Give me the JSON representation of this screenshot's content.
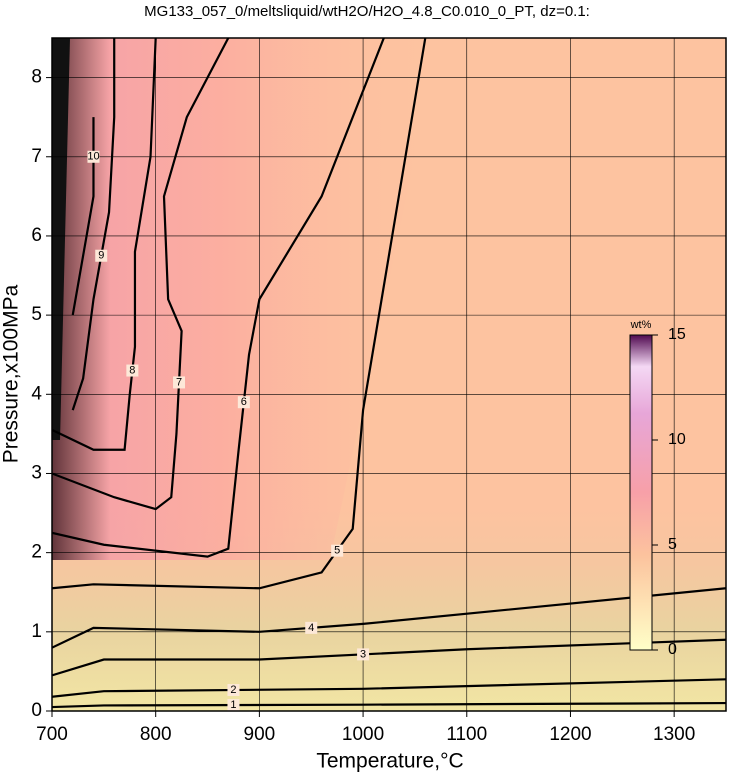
{
  "chart_data": {
    "type": "contour",
    "title": "MG133_057_0/meltsliquid/wtH2O/H2O_4.8_C0.010_0_PT, dz=0.1:",
    "x_label": "Temperature,°C",
    "y_label": "Pressure,x100MPa",
    "xlim": [
      700,
      1350
    ],
    "ylim": [
      0,
      8.5
    ],
    "xticks": [
      700,
      800,
      900,
      1000,
      1100,
      1200,
      1300
    ],
    "yticks": [
      0,
      1,
      2,
      3,
      4,
      5,
      6,
      7,
      8
    ],
    "grid": true,
    "colorbar": {
      "label": "wt%",
      "lim": [
        0,
        15
      ],
      "ticks": [
        0,
        5,
        10,
        15
      ]
    },
    "contours": [
      {
        "level": 1,
        "x": [
          700,
          750,
          1000,
          1350
        ],
        "y": [
          0.05,
          0.07,
          0.08,
          0.1
        ]
      },
      {
        "level": 2,
        "x": [
          700,
          750,
          1000,
          1350
        ],
        "y": [
          0.18,
          0.25,
          0.28,
          0.4
        ]
      },
      {
        "level": 3,
        "x": [
          700,
          750,
          900,
          1100,
          1350
        ],
        "y": [
          0.45,
          0.65,
          0.65,
          0.78,
          0.9
        ]
      },
      {
        "level": 4,
        "x": [
          700,
          740,
          900,
          1000,
          1350
        ],
        "y": [
          0.8,
          1.05,
          1.0,
          1.1,
          1.55
        ]
      },
      {
        "level": 5,
        "x": [
          700,
          740,
          900,
          960,
          990,
          1000,
          1060
        ],
        "y": [
          1.55,
          1.6,
          1.55,
          1.75,
          2.3,
          3.8,
          8.5
        ]
      },
      {
        "level": 6,
        "x": [
          700,
          750,
          850,
          870,
          880,
          890,
          900,
          960,
          1020
        ],
        "y": [
          2.25,
          2.1,
          1.95,
          2.05,
          3.3,
          4.5,
          5.2,
          6.5,
          8.5
        ]
      },
      {
        "level": 7,
        "x": [
          700,
          760,
          800,
          815,
          820,
          825,
          812,
          808,
          830,
          870
        ],
        "y": [
          3.0,
          2.7,
          2.55,
          2.7,
          3.5,
          4.8,
          5.2,
          6.5,
          7.5,
          8.5
        ]
      },
      {
        "level": 8,
        "x": [
          700,
          740,
          770,
          775,
          780,
          780,
          795,
          800
        ],
        "y": [
          3.55,
          3.3,
          3.3,
          4.0,
          4.6,
          5.8,
          7.0,
          8.5
        ]
      },
      {
        "level": 9,
        "x": [
          720,
          730,
          740,
          755,
          760,
          760
        ],
        "y": [
          3.8,
          4.2,
          5.2,
          6.3,
          7.5,
          8.5
        ]
      },
      {
        "level": 10,
        "x": [
          720,
          740,
          740
        ],
        "y": [
          5.0,
          6.5,
          7.5
        ]
      }
    ]
  }
}
